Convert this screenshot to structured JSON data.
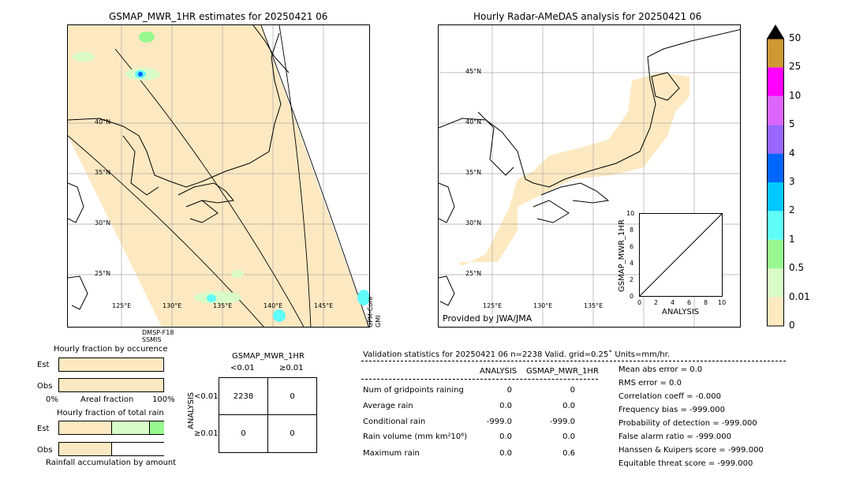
{
  "left_map": {
    "title": "GSMAP_MWR_1HR estimates for 20250421 06",
    "lat_labels": [
      "40°N",
      "35°N",
      "30°N",
      "25°N"
    ],
    "lon_labels": [
      "125°E",
      "130°E",
      "135°E",
      "140°E",
      "145°E"
    ],
    "swath_label_1": "DMSP-F18",
    "swath_label_2": "SSMIS",
    "swath_label_3": "GPM-Core",
    "swath_label_4": "GMI"
  },
  "right_map": {
    "title": "Hourly Radar-AMeDAS analysis for 20250421 06",
    "lat_labels": [
      "45°N",
      "40°N",
      "35°N",
      "30°N",
      "25°N"
    ],
    "lon_labels": [
      "125°E",
      "130°E",
      "135°E"
    ],
    "provider": "Provided by JWA/JMA"
  },
  "scatter_inset": {
    "ylabel": "GSMAP_MWR_1HR",
    "xlabel": "ANALYSIS",
    "ticks": [
      "0",
      "2",
      "4",
      "6",
      "8",
      "10"
    ]
  },
  "colorbar": {
    "labels": [
      "50",
      "25",
      "10",
      "5",
      "4",
      "3",
      "2",
      "1",
      "0.5",
      "0.01",
      "0"
    ],
    "colors": [
      "#ffe9c0",
      "#d8fbc8",
      "#98f890",
      "#60fdf8",
      "#00c8ff",
      "#0066ff",
      "#9966ff",
      "#dd66ff",
      "#ff00ff",
      "#cc9933"
    ],
    "extend_color": "#000000"
  },
  "fraction_occurrence": {
    "title": "Hourly fraction by occurence",
    "est_label": "Est",
    "obs_label": "Obs",
    "axis_left": "0%",
    "axis_mid": "Areal fraction",
    "axis_right": "100%"
  },
  "fraction_total": {
    "title": "Hourly fraction of total rain",
    "est_label": "Est",
    "obs_label": "Obs",
    "footer": "Rainfall accumulation by amount"
  },
  "contingency": {
    "title": "GSMAP_MWR_1HR",
    "col_lt": "<0.01",
    "col_ge": "≥0.01",
    "row_axis": "ANALYSIS",
    "row_lt": "<0.01",
    "row_ge": "≥0.01",
    "cells": [
      "2238",
      "0",
      "0",
      "0"
    ]
  },
  "validation": {
    "header": "Validation statistics for 20250421 06  n=2238 Valid. grid=0.25˚ Units=mm/hr.",
    "col_analysis": "ANALYSIS",
    "col_gsmap": "GSMAP_MWR_1HR",
    "rows": [
      {
        "label": "Num of gridpoints raining",
        "analysis": "0",
        "gsmap": "0"
      },
      {
        "label": "Average rain",
        "analysis": "0.0",
        "gsmap": "0.0"
      },
      {
        "label": "Conditional rain",
        "analysis": "-999.0",
        "gsmap": "-999.0"
      },
      {
        "label": "Rain volume (mm km²10⁶)",
        "analysis": "0.0",
        "gsmap": "0.0"
      },
      {
        "label": "Maximum rain",
        "analysis": "0.0",
        "gsmap": "0.6"
      }
    ],
    "scores": [
      "Mean abs error =    0.0",
      "RMS error =    0.0",
      "Correlation coeff = -0.000",
      "Frequency bias = -999.000",
      "Probability of detection = -999.000",
      "False alarm ratio = -999.000",
      "Hanssen & Kuipers score = -999.000",
      "Equitable threat score = -999.000"
    ]
  }
}
